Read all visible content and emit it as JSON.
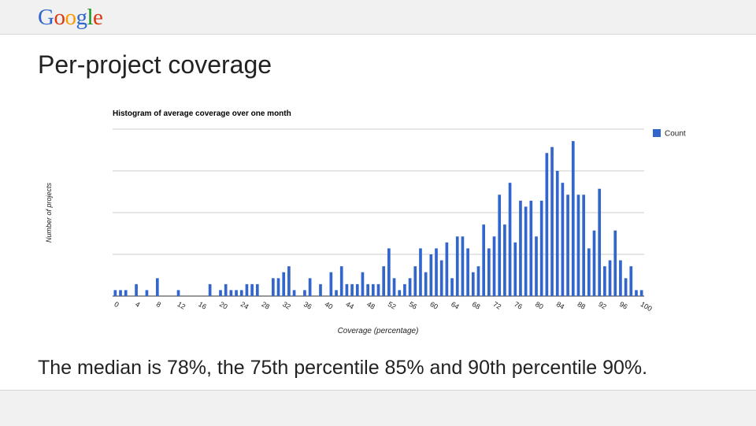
{
  "header": {
    "logo_text": "Google",
    "logo_letters": [
      {
        "ch": "G",
        "color": "#3366cc"
      },
      {
        "ch": "o",
        "color": "#dc3912"
      },
      {
        "ch": "o",
        "color": "#ff9900"
      },
      {
        "ch": "g",
        "color": "#3366cc"
      },
      {
        "ch": "l",
        "color": "#109618"
      },
      {
        "ch": "e",
        "color": "#dc3912"
      }
    ]
  },
  "slide": {
    "title": "Per-project coverage",
    "summary": "The median is 78%, the 75th percentile 85% and 90th percentile 90%."
  },
  "chart_data": {
    "type": "bar",
    "title": "Histogram of average coverage over one month",
    "xlabel": "Coverage (percentage)",
    "ylabel": "Number of projects",
    "x_ticks": [
      "0",
      "4",
      "8",
      "12",
      "16",
      "20",
      "24",
      "28",
      "32",
      "36",
      "40",
      "44",
      "48",
      "52",
      "56",
      "60",
      "64",
      "68",
      "72",
      "76",
      "80",
      "84",
      "88",
      "92",
      "96",
      "100"
    ],
    "x": [
      0,
      1,
      2,
      3,
      4,
      5,
      6,
      7,
      8,
      9,
      10,
      11,
      12,
      13,
      14,
      15,
      16,
      17,
      18,
      19,
      20,
      21,
      22,
      23,
      24,
      25,
      26,
      27,
      28,
      29,
      30,
      31,
      32,
      33,
      34,
      35,
      36,
      37,
      38,
      39,
      40,
      41,
      42,
      43,
      44,
      45,
      46,
      47,
      48,
      49,
      50,
      51,
      52,
      53,
      54,
      55,
      56,
      57,
      58,
      59,
      60,
      61,
      62,
      63,
      64,
      65,
      66,
      67,
      68,
      69,
      70,
      71,
      72,
      73,
      74,
      75,
      76,
      77,
      78,
      79,
      80,
      81,
      82,
      83,
      84,
      85,
      86,
      87,
      88,
      89,
      90,
      91,
      92,
      93,
      94,
      95,
      96,
      97,
      98,
      99,
      100
    ],
    "series": [
      {
        "name": "Count",
        "color": "#3366cc",
        "values": [
          1,
          1,
          1,
          0,
          2,
          0,
          1,
          0,
          3,
          0,
          0,
          0,
          1,
          0,
          0,
          0,
          0,
          0,
          2,
          0,
          1,
          2,
          1,
          1,
          1,
          2,
          2,
          2,
          0,
          0,
          3,
          3,
          4,
          5,
          1,
          0,
          1,
          3,
          0,
          2,
          0,
          4,
          1,
          5,
          2,
          2,
          2,
          4,
          2,
          2,
          2,
          5,
          8,
          3,
          1,
          2,
          3,
          5,
          8,
          4,
          7,
          8,
          6,
          9,
          3,
          10,
          10,
          8,
          4,
          5,
          12,
          8,
          10,
          17,
          12,
          19,
          9,
          16,
          15,
          16,
          10,
          16,
          24,
          25,
          21,
          19,
          17,
          26,
          17,
          17,
          8,
          11,
          18,
          5,
          6,
          11,
          6,
          3,
          5,
          1,
          1
        ]
      }
    ],
    "ylim": [
      0,
      28
    ],
    "grid": true,
    "legend_position": "right"
  }
}
